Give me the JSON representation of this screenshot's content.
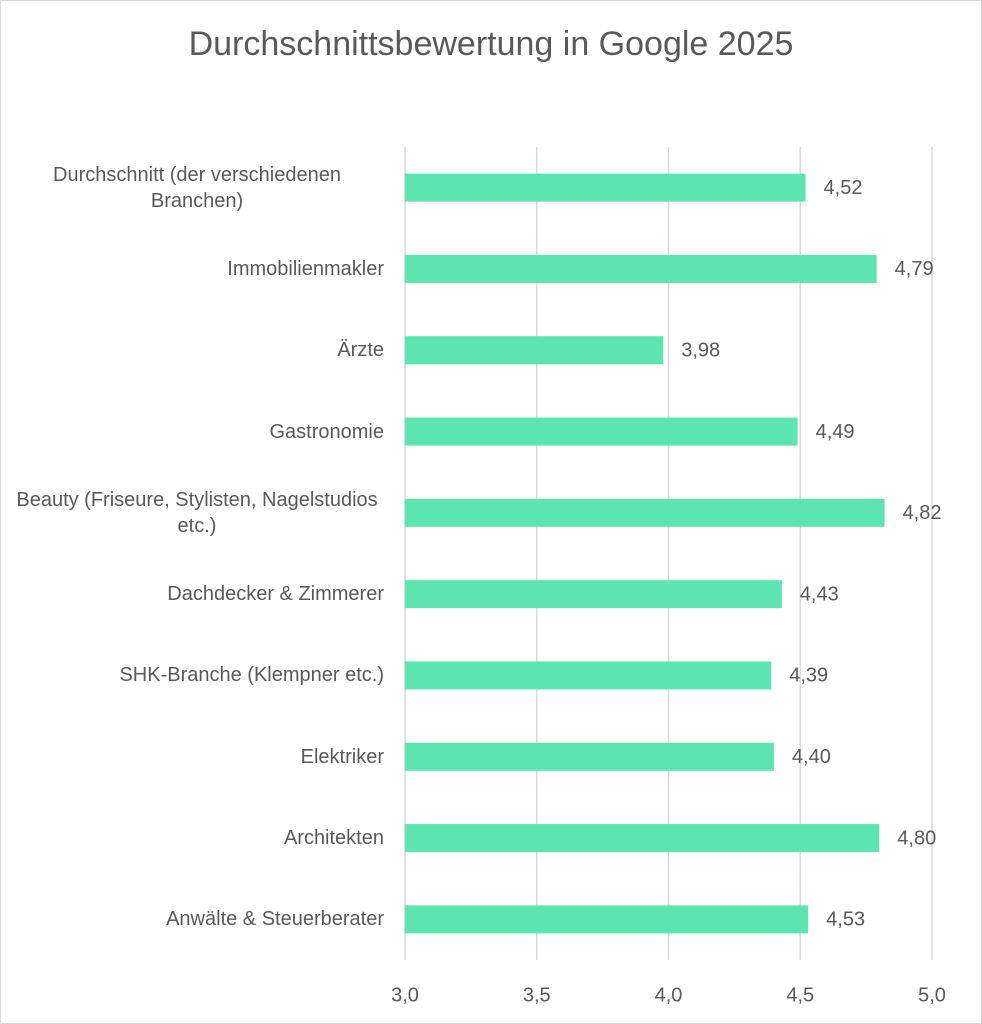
{
  "chart_data": {
    "type": "bar",
    "orientation": "horizontal",
    "title": "Durchschnittsbewertung in Google 2025",
    "categories": [
      "Durchschnitt (der verschiedenen Branchen)",
      "Immobilienmakler",
      "Ärzte",
      "Gastronomie",
      "Beauty (Friseure, Stylisten, Nagelstudios etc.)",
      "Dachdecker & Zimmerer",
      "SHK-Branche (Klempner etc.)",
      "Elektriker",
      "Architekten",
      "Anwälte & Steuerberater"
    ],
    "values": [
      4.52,
      4.79,
      3.98,
      4.49,
      4.82,
      4.43,
      4.39,
      4.4,
      4.8,
      4.53
    ],
    "value_labels": [
      "4,52",
      "4,79",
      "3,98",
      "4,49",
      "4,82",
      "4,43",
      "4,39",
      "4,40",
      "4,80",
      "4,53"
    ],
    "color": "#5ce5b0",
    "xlim": [
      3.0,
      5.0
    ],
    "xticks": [
      {
        "value": 3.0,
        "label": "3,0"
      },
      {
        "value": 3.5,
        "label": "3,5"
      },
      {
        "value": 4.0,
        "label": "4,0"
      },
      {
        "value": 4.5,
        "label": "4,5"
      },
      {
        "value": 5.0,
        "label": "5,0"
      }
    ],
    "grid": true
  }
}
